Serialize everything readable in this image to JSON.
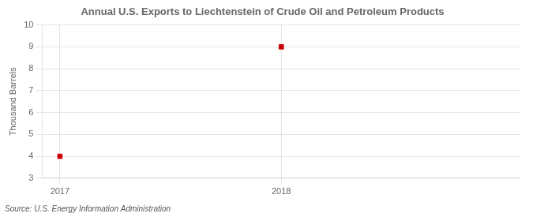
{
  "chart_data": {
    "type": "scatter",
    "title": "Annual U.S. Exports to Liechtenstein of Crude Oil and Petroleum Products",
    "ylabel": "Thousand Barrels",
    "annotations": [
      "Source: U.S. Energy Information Administration"
    ],
    "x": [
      2017,
      2018
    ],
    "values": [
      4,
      9
    ],
    "color": "#cc0000",
    "marker": "square",
    "xlim": [
      2016.92,
      2019.08
    ],
    "ylim": [
      3,
      10
    ],
    "xticks": [
      2017,
      2018
    ],
    "yticks": [
      3,
      4,
      5,
      6,
      7,
      8,
      9,
      10
    ],
    "grid": true
  }
}
